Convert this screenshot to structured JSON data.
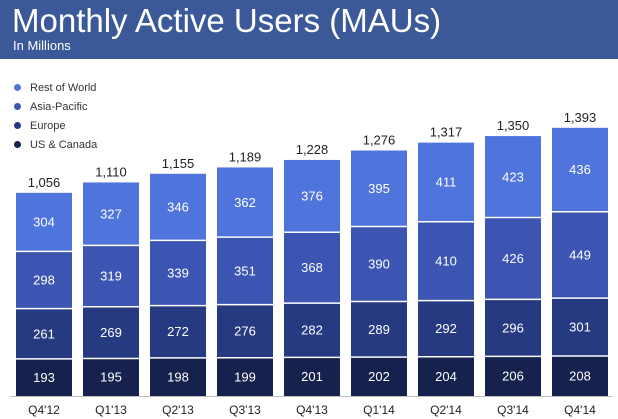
{
  "header": {
    "title": "Monthly Active Users (MAUs)",
    "subtitle": "In Millions"
  },
  "colors": {
    "header_bg": "#3b5998",
    "rest_of_world": "#4f74db",
    "asia_pacific": "#3c55b2",
    "europe": "#263a82",
    "us_canada": "#16214d",
    "separator": "#ffffff"
  },
  "chart_data": {
    "type": "bar",
    "stacked": true,
    "title": "Monthly Active Users (MAUs)",
    "subtitle": "In Millions",
    "xlabel": "",
    "ylabel": "",
    "categories": [
      "Q4'12",
      "Q1'13",
      "Q2'13",
      "Q3'13",
      "Q4'13",
      "Q1'14",
      "Q2'14",
      "Q3'14",
      "Q4'14"
    ],
    "totals": [
      "1,056",
      "1,110",
      "1,155",
      "1,189",
      "1,228",
      "1,276",
      "1,317",
      "1,350",
      "1,393"
    ],
    "total_values": [
      1056,
      1110,
      1155,
      1189,
      1228,
      1276,
      1317,
      1350,
      1393
    ],
    "series": [
      {
        "name": "US & Canada",
        "color": "#16214d",
        "values": [
          193,
          195,
          198,
          199,
          201,
          202,
          204,
          206,
          208
        ]
      },
      {
        "name": "Europe",
        "color": "#263a82",
        "values": [
          261,
          269,
          272,
          276,
          282,
          289,
          292,
          296,
          301
        ]
      },
      {
        "name": "Asia-Pacific",
        "color": "#3c55b2",
        "values": [
          298,
          319,
          339,
          351,
          368,
          390,
          410,
          426,
          449
        ]
      },
      {
        "name": "Rest of World",
        "color": "#4f74db",
        "values": [
          304,
          327,
          346,
          362,
          376,
          395,
          411,
          423,
          436
        ]
      }
    ],
    "legend_order": [
      "Rest of World",
      "Asia-Pacific",
      "Europe",
      "US & Canada"
    ],
    "ylim": [
      0,
      1393
    ],
    "grid": false,
    "legend_position": "top-left"
  }
}
